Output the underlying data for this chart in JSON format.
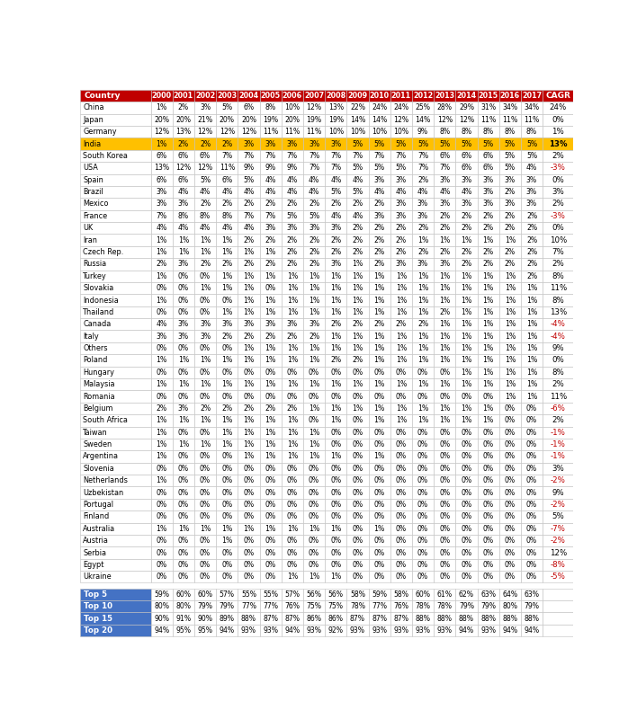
{
  "years": [
    "2000",
    "2001",
    "2002",
    "2003",
    "2004",
    "2005",
    "2006",
    "2007",
    "2008",
    "2009",
    "2010",
    "2011",
    "2012",
    "2013",
    "2014",
    "2015",
    "2016",
    "2017"
  ],
  "rows": [
    {
      "country": "China",
      "values": [
        "1%",
        "2%",
        "3%",
        "5%",
        "6%",
        "8%",
        "10%",
        "12%",
        "13%",
        "22%",
        "24%",
        "24%",
        "25%",
        "28%",
        "29%",
        "31%",
        "34%",
        "34%"
      ],
      "cagr": "24%",
      "highlight": "none"
    },
    {
      "country": "Japan",
      "values": [
        "20%",
        "20%",
        "21%",
        "20%",
        "20%",
        "19%",
        "20%",
        "19%",
        "19%",
        "14%",
        "14%",
        "12%",
        "14%",
        "12%",
        "12%",
        "11%",
        "11%",
        "11%"
      ],
      "cagr": "0%",
      "highlight": "none"
    },
    {
      "country": "Germany",
      "values": [
        "12%",
        "13%",
        "12%",
        "12%",
        "12%",
        "11%",
        "11%",
        "11%",
        "10%",
        "10%",
        "10%",
        "10%",
        "9%",
        "8%",
        "8%",
        "8%",
        "8%",
        "8%"
      ],
      "cagr": "1%",
      "highlight": "none"
    },
    {
      "country": "India",
      "values": [
        "1%",
        "2%",
        "2%",
        "2%",
        "3%",
        "3%",
        "3%",
        "3%",
        "3%",
        "5%",
        "5%",
        "5%",
        "5%",
        "5%",
        "5%",
        "5%",
        "5%",
        "5%"
      ],
      "cagr": "13%",
      "highlight": "india"
    },
    {
      "country": "South Korea",
      "values": [
        "6%",
        "6%",
        "6%",
        "7%",
        "7%",
        "7%",
        "7%",
        "7%",
        "7%",
        "7%",
        "7%",
        "7%",
        "7%",
        "6%",
        "6%",
        "6%",
        "5%",
        "5%"
      ],
      "cagr": "2%",
      "highlight": "none"
    },
    {
      "country": "USA",
      "values": [
        "13%",
        "12%",
        "12%",
        "11%",
        "9%",
        "9%",
        "9%",
        "7%",
        "7%",
        "5%",
        "5%",
        "5%",
        "7%",
        "7%",
        "6%",
        "6%",
        "5%",
        "4%"
      ],
      "cagr": "-3%",
      "highlight": "none"
    },
    {
      "country": "Spain",
      "values": [
        "6%",
        "6%",
        "5%",
        "6%",
        "5%",
        "4%",
        "4%",
        "4%",
        "4%",
        "4%",
        "3%",
        "3%",
        "2%",
        "3%",
        "3%",
        "3%",
        "3%",
        "3%"
      ],
      "cagr": "0%",
      "highlight": "none"
    },
    {
      "country": "Brazil",
      "values": [
        "3%",
        "4%",
        "4%",
        "4%",
        "4%",
        "4%",
        "4%",
        "4%",
        "5%",
        "5%",
        "4%",
        "4%",
        "4%",
        "4%",
        "4%",
        "3%",
        "2%",
        "3%"
      ],
      "cagr": "3%",
      "highlight": "none"
    },
    {
      "country": "Mexico",
      "values": [
        "3%",
        "3%",
        "2%",
        "2%",
        "2%",
        "2%",
        "2%",
        "2%",
        "2%",
        "2%",
        "2%",
        "3%",
        "3%",
        "3%",
        "3%",
        "3%",
        "3%",
        "3%"
      ],
      "cagr": "2%",
      "highlight": "none"
    },
    {
      "country": "France",
      "values": [
        "7%",
        "8%",
        "8%",
        "8%",
        "7%",
        "7%",
        "5%",
        "5%",
        "4%",
        "4%",
        "3%",
        "3%",
        "3%",
        "2%",
        "2%",
        "2%",
        "2%",
        "2%"
      ],
      "cagr": "-3%",
      "highlight": "none"
    },
    {
      "country": "UK",
      "values": [
        "4%",
        "4%",
        "4%",
        "4%",
        "4%",
        "3%",
        "3%",
        "3%",
        "3%",
        "2%",
        "2%",
        "2%",
        "2%",
        "2%",
        "2%",
        "2%",
        "2%",
        "2%"
      ],
      "cagr": "0%",
      "highlight": "none"
    },
    {
      "country": "Iran",
      "values": [
        "1%",
        "1%",
        "1%",
        "1%",
        "2%",
        "2%",
        "2%",
        "2%",
        "2%",
        "2%",
        "2%",
        "2%",
        "1%",
        "1%",
        "1%",
        "1%",
        "1%",
        "2%"
      ],
      "cagr": "10%",
      "highlight": "none"
    },
    {
      "country": "Czech Rep.",
      "values": [
        "1%",
        "1%",
        "1%",
        "1%",
        "1%",
        "1%",
        "2%",
        "2%",
        "2%",
        "2%",
        "2%",
        "2%",
        "2%",
        "2%",
        "2%",
        "2%",
        "2%",
        "2%"
      ],
      "cagr": "7%",
      "highlight": "none"
    },
    {
      "country": "Russia",
      "values": [
        "2%",
        "3%",
        "2%",
        "2%",
        "2%",
        "2%",
        "2%",
        "2%",
        "3%",
        "1%",
        "2%",
        "3%",
        "3%",
        "3%",
        "2%",
        "2%",
        "2%",
        "2%"
      ],
      "cagr": "2%",
      "highlight": "none"
    },
    {
      "country": "Turkey",
      "values": [
        "1%",
        "0%",
        "0%",
        "1%",
        "1%",
        "1%",
        "1%",
        "1%",
        "1%",
        "1%",
        "1%",
        "1%",
        "1%",
        "1%",
        "1%",
        "1%",
        "1%",
        "2%"
      ],
      "cagr": "8%",
      "highlight": "none"
    },
    {
      "country": "Slovakia",
      "values": [
        "0%",
        "0%",
        "1%",
        "1%",
        "1%",
        "0%",
        "1%",
        "1%",
        "1%",
        "1%",
        "1%",
        "1%",
        "1%",
        "1%",
        "1%",
        "1%",
        "1%",
        "1%"
      ],
      "cagr": "11%",
      "highlight": "none"
    },
    {
      "country": "Indonesia",
      "values": [
        "1%",
        "0%",
        "0%",
        "0%",
        "1%",
        "1%",
        "1%",
        "1%",
        "1%",
        "1%",
        "1%",
        "1%",
        "1%",
        "1%",
        "1%",
        "1%",
        "1%",
        "1%"
      ],
      "cagr": "8%",
      "highlight": "none"
    },
    {
      "country": "Thailand",
      "values": [
        "0%",
        "0%",
        "0%",
        "1%",
        "1%",
        "1%",
        "1%",
        "1%",
        "1%",
        "1%",
        "1%",
        "1%",
        "1%",
        "2%",
        "1%",
        "1%",
        "1%",
        "1%"
      ],
      "cagr": "13%",
      "highlight": "none"
    },
    {
      "country": "Canada",
      "values": [
        "4%",
        "3%",
        "3%",
        "3%",
        "3%",
        "3%",
        "3%",
        "3%",
        "2%",
        "2%",
        "2%",
        "2%",
        "2%",
        "1%",
        "1%",
        "1%",
        "1%",
        "1%"
      ],
      "cagr": "-4%",
      "highlight": "none"
    },
    {
      "country": "Italy",
      "values": [
        "3%",
        "3%",
        "3%",
        "2%",
        "2%",
        "2%",
        "2%",
        "2%",
        "1%",
        "1%",
        "1%",
        "1%",
        "1%",
        "1%",
        "1%",
        "1%",
        "1%",
        "1%"
      ],
      "cagr": "-4%",
      "highlight": "none"
    },
    {
      "country": "Others",
      "values": [
        "0%",
        "0%",
        "0%",
        "0%",
        "1%",
        "1%",
        "1%",
        "1%",
        "1%",
        "1%",
        "1%",
        "1%",
        "1%",
        "1%",
        "1%",
        "1%",
        "1%",
        "1%"
      ],
      "cagr": "9%",
      "highlight": "none"
    },
    {
      "country": "Poland",
      "values": [
        "1%",
        "1%",
        "1%",
        "1%",
        "1%",
        "1%",
        "1%",
        "1%",
        "2%",
        "2%",
        "1%",
        "1%",
        "1%",
        "1%",
        "1%",
        "1%",
        "1%",
        "1%"
      ],
      "cagr": "0%",
      "highlight": "none"
    },
    {
      "country": "Hungary",
      "values": [
        "0%",
        "0%",
        "0%",
        "0%",
        "0%",
        "0%",
        "0%",
        "0%",
        "0%",
        "0%",
        "0%",
        "0%",
        "0%",
        "0%",
        "1%",
        "1%",
        "1%",
        "1%"
      ],
      "cagr": "8%",
      "highlight": "none"
    },
    {
      "country": "Malaysia",
      "values": [
        "1%",
        "1%",
        "1%",
        "1%",
        "1%",
        "1%",
        "1%",
        "1%",
        "1%",
        "1%",
        "1%",
        "1%",
        "1%",
        "1%",
        "1%",
        "1%",
        "1%",
        "1%"
      ],
      "cagr": "2%",
      "highlight": "none"
    },
    {
      "country": "Romania",
      "values": [
        "0%",
        "0%",
        "0%",
        "0%",
        "0%",
        "0%",
        "0%",
        "0%",
        "0%",
        "0%",
        "0%",
        "0%",
        "0%",
        "0%",
        "0%",
        "0%",
        "1%",
        "1%"
      ],
      "cagr": "11%",
      "highlight": "none"
    },
    {
      "country": "Belgium",
      "values": [
        "2%",
        "3%",
        "2%",
        "2%",
        "2%",
        "2%",
        "2%",
        "1%",
        "1%",
        "1%",
        "1%",
        "1%",
        "1%",
        "1%",
        "1%",
        "1%",
        "0%",
        "0%"
      ],
      "cagr": "-6%",
      "highlight": "none"
    },
    {
      "country": "South Africa",
      "values": [
        "1%",
        "1%",
        "1%",
        "1%",
        "1%",
        "1%",
        "1%",
        "0%",
        "1%",
        "0%",
        "1%",
        "1%",
        "1%",
        "1%",
        "1%",
        "1%",
        "0%",
        "0%"
      ],
      "cagr": "2%",
      "highlight": "none"
    },
    {
      "country": "Taiwan",
      "values": [
        "1%",
        "0%",
        "0%",
        "1%",
        "1%",
        "1%",
        "1%",
        "1%",
        "0%",
        "0%",
        "0%",
        "0%",
        "0%",
        "0%",
        "0%",
        "0%",
        "0%",
        "0%"
      ],
      "cagr": "-1%",
      "highlight": "none"
    },
    {
      "country": "Sweden",
      "values": [
        "1%",
        "1%",
        "1%",
        "1%",
        "1%",
        "1%",
        "1%",
        "1%",
        "0%",
        "0%",
        "0%",
        "0%",
        "0%",
        "0%",
        "0%",
        "0%",
        "0%",
        "0%"
      ],
      "cagr": "-1%",
      "highlight": "none"
    },
    {
      "country": "Argentina",
      "values": [
        "1%",
        "0%",
        "0%",
        "0%",
        "1%",
        "1%",
        "1%",
        "1%",
        "1%",
        "0%",
        "1%",
        "0%",
        "0%",
        "0%",
        "0%",
        "0%",
        "0%",
        "0%"
      ],
      "cagr": "-1%",
      "highlight": "none"
    },
    {
      "country": "Slovenia",
      "values": [
        "0%",
        "0%",
        "0%",
        "0%",
        "0%",
        "0%",
        "0%",
        "0%",
        "0%",
        "0%",
        "0%",
        "0%",
        "0%",
        "0%",
        "0%",
        "0%",
        "0%",
        "0%"
      ],
      "cagr": "3%",
      "highlight": "none"
    },
    {
      "country": "Netherlands",
      "values": [
        "1%",
        "0%",
        "0%",
        "0%",
        "0%",
        "0%",
        "0%",
        "0%",
        "0%",
        "0%",
        "0%",
        "0%",
        "0%",
        "0%",
        "0%",
        "0%",
        "0%",
        "0%"
      ],
      "cagr": "-2%",
      "highlight": "none"
    },
    {
      "country": "Uzbekistan",
      "values": [
        "0%",
        "0%",
        "0%",
        "0%",
        "0%",
        "0%",
        "0%",
        "0%",
        "0%",
        "0%",
        "0%",
        "0%",
        "0%",
        "0%",
        "0%",
        "0%",
        "0%",
        "0%"
      ],
      "cagr": "9%",
      "highlight": "none"
    },
    {
      "country": "Portugal",
      "values": [
        "0%",
        "0%",
        "0%",
        "0%",
        "0%",
        "0%",
        "0%",
        "0%",
        "0%",
        "0%",
        "0%",
        "0%",
        "0%",
        "0%",
        "0%",
        "0%",
        "0%",
        "0%"
      ],
      "cagr": "-2%",
      "highlight": "none"
    },
    {
      "country": "Finland",
      "values": [
        "0%",
        "0%",
        "0%",
        "0%",
        "0%",
        "0%",
        "0%",
        "0%",
        "0%",
        "0%",
        "0%",
        "0%",
        "0%",
        "0%",
        "0%",
        "0%",
        "0%",
        "0%"
      ],
      "cagr": "5%",
      "highlight": "none"
    },
    {
      "country": "Australia",
      "values": [
        "1%",
        "1%",
        "1%",
        "1%",
        "1%",
        "1%",
        "1%",
        "1%",
        "1%",
        "0%",
        "1%",
        "0%",
        "0%",
        "0%",
        "0%",
        "0%",
        "0%",
        "0%"
      ],
      "cagr": "-7%",
      "highlight": "none"
    },
    {
      "country": "Austria",
      "values": [
        "0%",
        "0%",
        "0%",
        "1%",
        "0%",
        "0%",
        "0%",
        "0%",
        "0%",
        "0%",
        "0%",
        "0%",
        "0%",
        "0%",
        "0%",
        "0%",
        "0%",
        "0%"
      ],
      "cagr": "-2%",
      "highlight": "none"
    },
    {
      "country": "Serbia",
      "values": [
        "0%",
        "0%",
        "0%",
        "0%",
        "0%",
        "0%",
        "0%",
        "0%",
        "0%",
        "0%",
        "0%",
        "0%",
        "0%",
        "0%",
        "0%",
        "0%",
        "0%",
        "0%"
      ],
      "cagr": "12%",
      "highlight": "none"
    },
    {
      "country": "Egypt",
      "values": [
        "0%",
        "0%",
        "0%",
        "0%",
        "0%",
        "0%",
        "0%",
        "0%",
        "0%",
        "0%",
        "0%",
        "0%",
        "0%",
        "0%",
        "0%",
        "0%",
        "0%",
        "0%"
      ],
      "cagr": "-8%",
      "highlight": "none"
    },
    {
      "country": "Ukraine",
      "values": [
        "0%",
        "0%",
        "0%",
        "0%",
        "0%",
        "0%",
        "1%",
        "1%",
        "1%",
        "0%",
        "0%",
        "0%",
        "0%",
        "0%",
        "0%",
        "0%",
        "0%",
        "0%"
      ],
      "cagr": "-5%",
      "highlight": "none"
    }
  ],
  "summary_rows": [
    {
      "label": "Top 5",
      "values": [
        "59%",
        "60%",
        "60%",
        "57%",
        "55%",
        "55%",
        "57%",
        "56%",
        "56%",
        "58%",
        "59%",
        "58%",
        "60%",
        "61%",
        "62%",
        "63%",
        "64%",
        "63%"
      ]
    },
    {
      "label": "Top 10",
      "values": [
        "80%",
        "80%",
        "79%",
        "79%",
        "77%",
        "77%",
        "76%",
        "75%",
        "75%",
        "78%",
        "77%",
        "76%",
        "78%",
        "78%",
        "79%",
        "79%",
        "80%",
        "79%"
      ]
    },
    {
      "label": "Top 15",
      "values": [
        "90%",
        "91%",
        "90%",
        "89%",
        "88%",
        "87%",
        "87%",
        "86%",
        "86%",
        "87%",
        "87%",
        "87%",
        "88%",
        "88%",
        "88%",
        "88%",
        "88%",
        "88%"
      ]
    },
    {
      "label": "Top 20",
      "values": [
        "94%",
        "95%",
        "95%",
        "94%",
        "93%",
        "93%",
        "94%",
        "93%",
        "92%",
        "93%",
        "93%",
        "93%",
        "93%",
        "93%",
        "94%",
        "93%",
        "94%",
        "94%"
      ]
    }
  ],
  "header_bg": "#C00000",
  "header_text": "#FFFFFF",
  "india_bg": "#FFC000",
  "india_text": "#000000",
  "row_bg": "#FFFFFF",
  "summary_bg": "#4472C4",
  "summary_text": "#FFFFFF",
  "neg_cagr_color": "#C00000",
  "pos_cagr_color": "#000000",
  "border_color": "#BFBFBF",
  "neg_cagr_box_bg": "#FFE0E0"
}
